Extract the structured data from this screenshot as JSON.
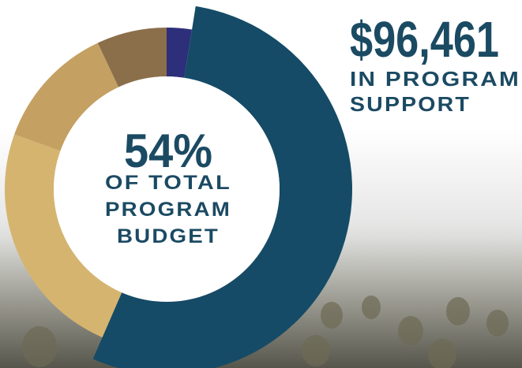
{
  "chart_data": {
    "type": "pie",
    "donut": true,
    "categories": [
      null,
      null,
      null,
      null,
      null
    ],
    "values": [
      2.5,
      54,
      24,
      12.5,
      7
    ],
    "value_labels": [
      null,
      "54%",
      null,
      null,
      null
    ],
    "colors": [
      "#2d2f7a",
      "#154b66",
      "#d5b46f",
      "#c4a062",
      "#8b6f4b"
    ],
    "center_text": [
      "OF TOTAL",
      "PROGRAM",
      "BUDGET"
    ],
    "headline": "$96,461",
    "headline_text": [
      "IN PROGRAM",
      "SUPPORT"
    ]
  }
}
